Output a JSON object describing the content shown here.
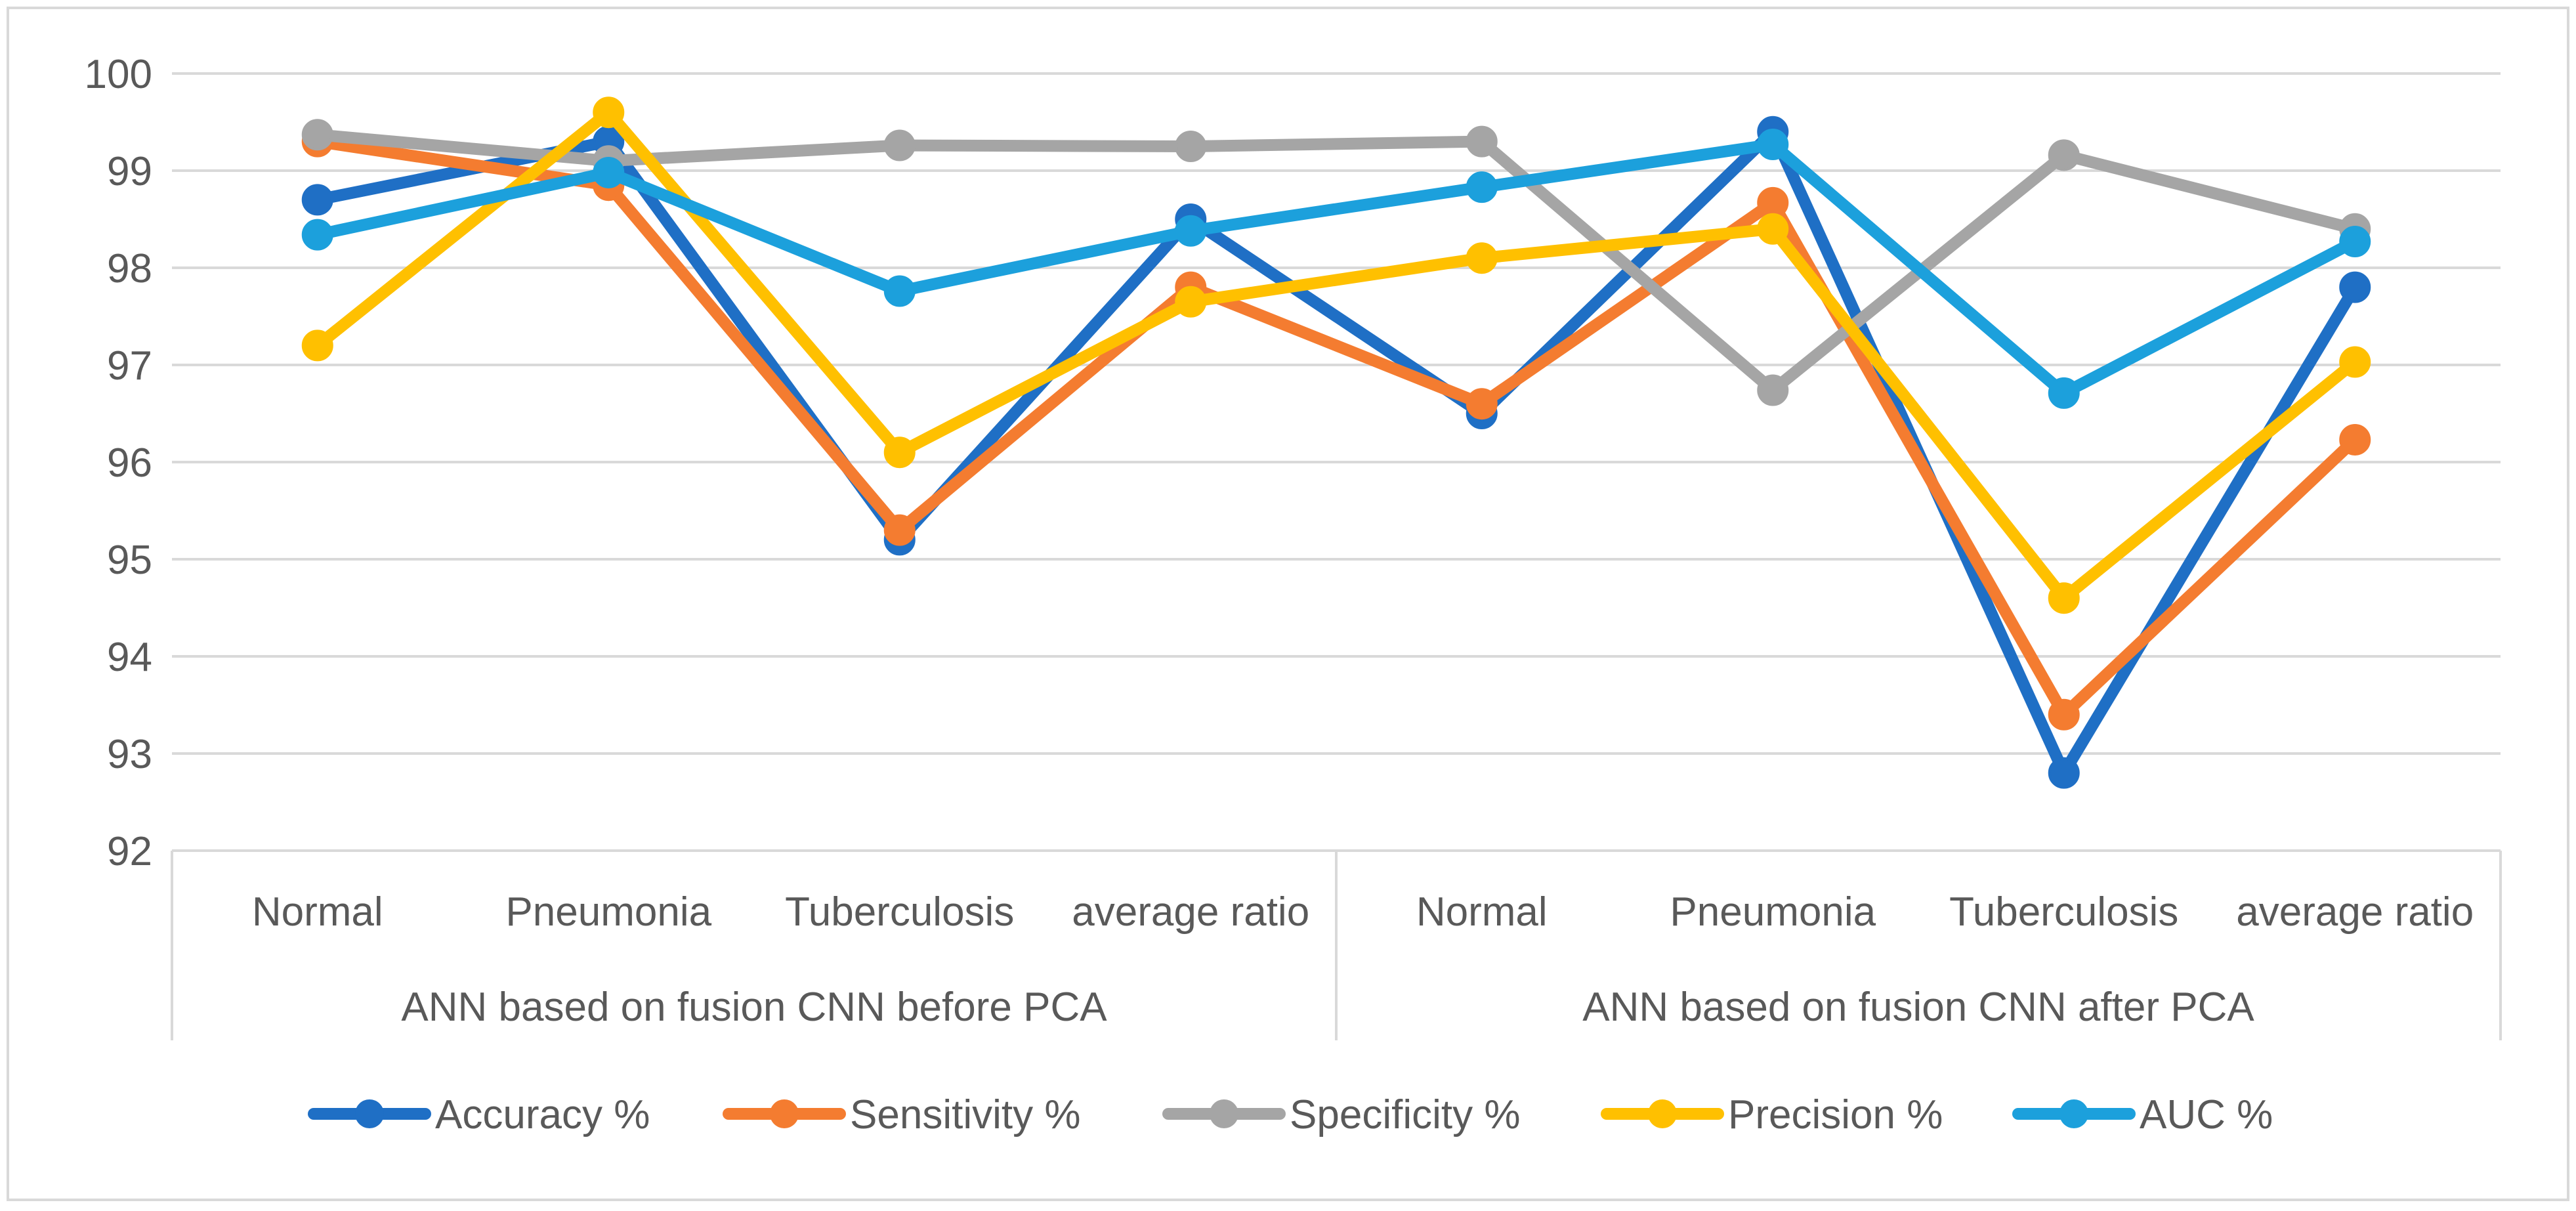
{
  "chart_data": {
    "type": "line",
    "title": "",
    "xlabel": "",
    "ylabel": "",
    "ylim": [
      92,
      100
    ],
    "yticks": [
      92,
      93,
      94,
      95,
      96,
      97,
      98,
      99,
      100
    ],
    "ytick_labels": [
      "92",
      "93",
      "94",
      "95",
      "96",
      "97",
      "98",
      "99",
      "100"
    ],
    "grid": true,
    "legend_position": "bottom",
    "categories": [
      "Normal",
      "Pneumonia",
      "Tuberculosis",
      "average ratio",
      "Normal",
      "Pneumonia",
      "Tuberculosis",
      "average ratio"
    ],
    "groups": [
      {
        "label": "ANN based on fusion CNN before PCA",
        "span": [
          0,
          3
        ]
      },
      {
        "label": "ANN based on fusion CNN after PCA",
        "span": [
          4,
          7
        ]
      }
    ],
    "series": [
      {
        "name": "Accuracy %",
        "color": "#1F6FC5",
        "values": [
          98.7,
          99.3,
          95.2,
          98.5,
          96.5,
          99.4,
          92.8,
          97.8
        ]
      },
      {
        "name": "Sensitivity %",
        "color": "#F47C30",
        "values": [
          99.3,
          98.85,
          95.3,
          97.8,
          96.6,
          98.67,
          93.4,
          96.23
        ]
      },
      {
        "name": "Specificity %",
        "color": "#A5A5A5",
        "values": [
          99.37,
          99.1,
          99.26,
          99.25,
          99.3,
          96.74,
          99.16,
          98.4
        ]
      },
      {
        "name": "Precision %",
        "color": "#FFC000",
        "values": [
          97.2,
          99.6,
          96.1,
          97.65,
          98.1,
          98.4,
          94.6,
          97.03
        ]
      },
      {
        "name": "AUC %",
        "color": "#1CA0DC",
        "values": [
          98.34,
          98.98,
          97.76,
          98.38,
          98.83,
          99.27,
          96.71,
          98.27
        ]
      }
    ]
  }
}
